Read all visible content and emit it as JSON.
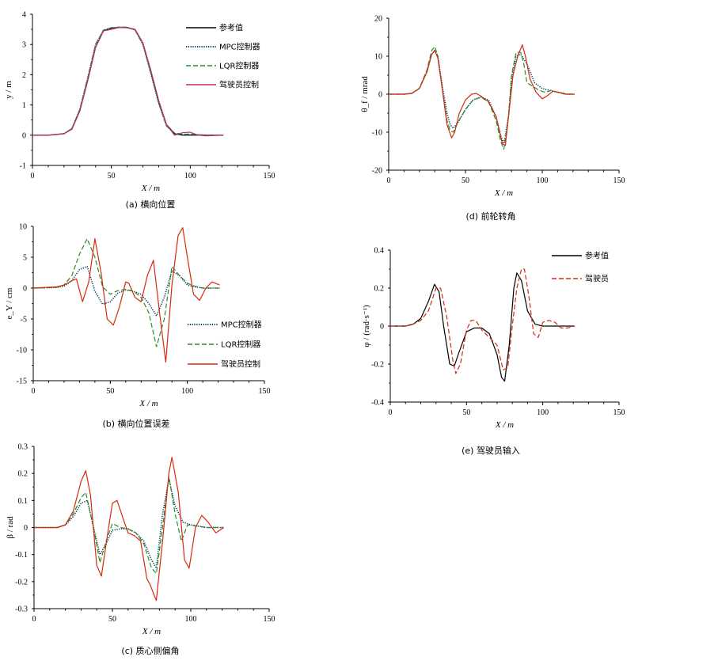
{
  "chart_data": [
    {
      "id": "a",
      "type": "line",
      "caption": "(a)   横向位置",
      "xlabel": "X / m",
      "ylabel": "y / m",
      "xlim": [
        0,
        150
      ],
      "ylim": [
        -1,
        4
      ],
      "xticks": [
        0,
        50,
        100,
        150
      ],
      "yticks": [
        -1,
        0,
        1,
        2,
        3,
        4
      ],
      "legend_position": "top-right",
      "series": [
        {
          "name": "参考值",
          "color": "#000000",
          "dash": "solid",
          "x": [
            0,
            10,
            20,
            25,
            30,
            35,
            40,
            45,
            50,
            55,
            60,
            65,
            70,
            75,
            80,
            85,
            90,
            95,
            100,
            110,
            121
          ],
          "y": [
            0,
            0,
            0.05,
            0.2,
            0.8,
            1.8,
            2.9,
            3.45,
            3.55,
            3.56,
            3.56,
            3.5,
            3.05,
            2.1,
            1.1,
            0.35,
            0.05,
            0,
            0,
            0,
            0
          ]
        },
        {
          "name": "MPC控制器",
          "color": "#003b5c",
          "dash": "dotted",
          "x": [
            0,
            10,
            20,
            25,
            30,
            35,
            40,
            45,
            50,
            55,
            60,
            65,
            70,
            75,
            80,
            85,
            90,
            95,
            100,
            110,
            121
          ],
          "y": [
            0,
            0,
            0.05,
            0.22,
            0.85,
            1.9,
            3.0,
            3.47,
            3.55,
            3.57,
            3.56,
            3.48,
            3.0,
            2.05,
            1.05,
            0.3,
            0.05,
            0.02,
            0.02,
            0,
            0
          ]
        },
        {
          "name": "LQR控制器",
          "color": "#2a8a2a",
          "dash": "dashed",
          "x": [
            0,
            10,
            20,
            25,
            30,
            35,
            40,
            45,
            50,
            55,
            60,
            65,
            70,
            75,
            80,
            85,
            90,
            95,
            100,
            110,
            121
          ],
          "y": [
            0,
            0,
            0.05,
            0.22,
            0.85,
            1.9,
            3.0,
            3.48,
            3.52,
            3.58,
            3.57,
            3.48,
            3.0,
            2.05,
            1.05,
            0.3,
            0.08,
            0.03,
            0.04,
            0,
            0
          ]
        },
        {
          "name": "驾驶员控制",
          "color": "#c8286e",
          "dash": "solid",
          "x": [
            0,
            10,
            20,
            25,
            30,
            35,
            40,
            45,
            50,
            55,
            60,
            65,
            70,
            75,
            80,
            85,
            90,
            95,
            100,
            105,
            110,
            121
          ],
          "y": [
            0,
            0,
            0.05,
            0.2,
            0.8,
            1.8,
            2.9,
            3.45,
            3.5,
            3.56,
            3.55,
            3.5,
            3.05,
            2.15,
            1.15,
            0.35,
            0,
            0.08,
            0.1,
            0,
            -0.02,
            0
          ]
        }
      ]
    },
    {
      "id": "b",
      "type": "line",
      "caption": "(b)  横向位置误差",
      "xlabel": "X / m",
      "ylabel": "e_Y / cm",
      "xlim": [
        0,
        150
      ],
      "ylim": [
        -15,
        10
      ],
      "xticks": [
        0,
        50,
        100,
        150
      ],
      "yticks": [
        -15,
        -10,
        -5,
        0,
        5,
        10
      ],
      "legend_position": "bottom-right",
      "series": [
        {
          "name": "MPC控制器",
          "color": "#003b5c",
          "dash": "dotted",
          "x": [
            0,
            15,
            20,
            25,
            30,
            35,
            40,
            45,
            50,
            55,
            60,
            65,
            70,
            75,
            80,
            85,
            90,
            95,
            100,
            105,
            110,
            115,
            121
          ],
          "y": [
            0,
            0.1,
            0.3,
            1.2,
            3.0,
            3.5,
            -0.5,
            -2.6,
            -2.2,
            -0.8,
            -0.3,
            -0.5,
            -1.0,
            -2.5,
            -4.5,
            -1.5,
            2.8,
            2.0,
            0.5,
            0.2,
            0,
            0,
            0
          ]
        },
        {
          "name": "LQR控制器",
          "color": "#2a8a2a",
          "dash": "dashed",
          "x": [
            0,
            15,
            20,
            25,
            30,
            35,
            40,
            45,
            50,
            55,
            60,
            65,
            70,
            75,
            80,
            85,
            90,
            95,
            100,
            105,
            110,
            115,
            121
          ],
          "y": [
            0,
            0.1,
            0.5,
            2.0,
            5.5,
            8.0,
            5.0,
            0.2,
            -1.0,
            -0.4,
            -0.2,
            -0.5,
            -1.5,
            -4.0,
            -9.5,
            -5.0,
            3.5,
            2.0,
            0.8,
            0.3,
            0,
            0,
            0
          ]
        },
        {
          "name": "驾驶员控制",
          "color": "#d42a10",
          "dash": "solid",
          "x": [
            0,
            15,
            20,
            25,
            28,
            32,
            36,
            40,
            44,
            48,
            52,
            56,
            60,
            62,
            66,
            70,
            74,
            78,
            82,
            86,
            90,
            94,
            97,
            100,
            104,
            108,
            112,
            116,
            121
          ],
          "y": [
            0,
            0.2,
            0.5,
            1.2,
            1.5,
            -2.2,
            1.0,
            8.0,
            2.5,
            -5.0,
            -6.0,
            -3.0,
            1.0,
            0.8,
            -1.5,
            -2.2,
            2.0,
            4.5,
            -4.0,
            -12.0,
            0.5,
            8.5,
            9.8,
            5.0,
            -1.0,
            -2.0,
            0,
            1.0,
            0.5
          ]
        }
      ]
    },
    {
      "id": "c",
      "type": "line",
      "caption": "(c)    质心侧偏角",
      "xlabel": "X / m",
      "ylabel": "β / rad",
      "xlim": [
        0,
        150
      ],
      "ylim": [
        -0.3,
        0.3
      ],
      "xticks": [
        0,
        50,
        100,
        150
      ],
      "yticks": [
        -0.3,
        -0.2,
        -0.1,
        0,
        0.1,
        0.2,
        0.3
      ],
      "series": [
        {
          "name": "MPC控制器",
          "color": "#003b5c",
          "dash": "dotted",
          "x": [
            0,
            15,
            20,
            25,
            30,
            34,
            38,
            42,
            46,
            50,
            55,
            60,
            65,
            70,
            75,
            78,
            82,
            86,
            90,
            95,
            100,
            110,
            121
          ],
          "y": [
            0,
            0,
            0.01,
            0.04,
            0.09,
            0.1,
            0.0,
            -0.1,
            -0.06,
            -0.01,
            -0.005,
            -0.005,
            -0.02,
            -0.05,
            -0.12,
            -0.15,
            0.05,
            0.18,
            0.08,
            0.02,
            0.01,
            0,
            0
          ]
        },
        {
          "name": "LQR控制器",
          "color": "#2a8a2a",
          "dash": "dashed",
          "x": [
            0,
            15,
            20,
            25,
            30,
            33,
            38,
            42,
            46,
            50,
            55,
            60,
            65,
            70,
            75,
            78,
            82,
            86,
            90,
            94,
            98,
            104,
            110,
            121
          ],
          "y": [
            0,
            0,
            0.01,
            0.05,
            0.11,
            0.13,
            0.0,
            -0.13,
            -0.05,
            0.015,
            0.0,
            -0.005,
            -0.02,
            -0.06,
            -0.15,
            -0.17,
            0.0,
            0.19,
            0.05,
            -0.05,
            0.01,
            0.005,
            0,
            0
          ]
        },
        {
          "name": "驾驶员控制",
          "color": "#d42a10",
          "dash": "solid",
          "x": [
            0,
            15,
            20,
            25,
            30,
            33,
            36,
            40,
            43,
            47,
            50,
            53,
            57,
            60,
            64,
            68,
            72,
            74,
            78,
            82,
            86,
            88,
            92,
            96,
            99,
            103,
            107,
            111,
            116,
            121
          ],
          "y": [
            0,
            0,
            0.01,
            0.06,
            0.17,
            0.21,
            0.12,
            -0.14,
            -0.18,
            -0.02,
            0.09,
            0.1,
            0.03,
            -0.02,
            -0.03,
            -0.05,
            -0.19,
            -0.21,
            -0.27,
            -0.05,
            0.2,
            0.26,
            0.13,
            -0.12,
            -0.15,
            0.0,
            0.045,
            0.02,
            -0.02,
            0
          ]
        }
      ]
    },
    {
      "id": "d",
      "type": "line",
      "caption": "(d)  前轮转角",
      "xlabel": "X / m",
      "ylabel": "θ_f / mrad",
      "xlim": [
        0,
        150
      ],
      "ylim": [
        -20,
        20
      ],
      "xticks": [
        0,
        50,
        100,
        150
      ],
      "yticks": [
        -20,
        -10,
        0,
        10,
        20
      ],
      "series": [
        {
          "name": "MPC控制器",
          "color": "#003b5c",
          "dash": "dotted",
          "x": [
            0,
            10,
            15,
            20,
            25,
            28,
            30,
            32,
            35,
            38,
            40,
            42,
            45,
            50,
            55,
            60,
            65,
            70,
            73,
            75,
            78,
            80,
            83,
            86,
            90,
            95,
            100,
            105,
            110,
            115,
            121
          ],
          "y": [
            0,
            0,
            0.2,
            1.5,
            6.0,
            10.5,
            11.5,
            10.0,
            2.0,
            -5.0,
            -8.0,
            -9.0,
            -7.5,
            -4.0,
            -1.5,
            -0.8,
            -1.5,
            -6.0,
            -11.0,
            -13.0,
            -6.0,
            4.0,
            10.0,
            10.5,
            8.0,
            3.0,
            1.5,
            1.0,
            0.5,
            0,
            0
          ]
        },
        {
          "name": "LQR控制器",
          "color": "#2a8a2a",
          "dash": "dashed",
          "x": [
            0,
            10,
            15,
            20,
            25,
            28,
            30,
            32,
            35,
            38,
            40,
            42,
            45,
            50,
            55,
            60,
            65,
            70,
            73,
            75,
            78,
            80,
            83,
            86,
            88,
            90,
            94,
            98,
            102,
            106,
            110,
            115,
            121
          ],
          "y": [
            0,
            0,
            0.2,
            1.5,
            6.5,
            11.5,
            12.5,
            10.0,
            1.0,
            -7.0,
            -9.5,
            -10.0,
            -7.5,
            -4.0,
            -1.5,
            -0.8,
            -2.0,
            -7.0,
            -12.5,
            -14.5,
            -6.0,
            5.0,
            11.0,
            11.0,
            8.0,
            3.0,
            2.0,
            1.0,
            0.5,
            1.0,
            0.5,
            0,
            0
          ]
        },
        {
          "name": "驾驶员控制",
          "color": "#d42a10",
          "dash": "solid",
          "x": [
            0,
            10,
            15,
            20,
            25,
            28,
            30,
            32,
            35,
            38,
            41,
            43,
            46,
            50,
            54,
            57,
            60,
            65,
            70,
            74,
            76,
            78,
            81,
            84,
            87,
            89,
            92,
            96,
            100,
            103,
            107,
            111,
            116,
            121
          ],
          "y": [
            0,
            0,
            0.2,
            1.5,
            6.0,
            10.5,
            11.5,
            9.5,
            1.0,
            -8.0,
            -11.5,
            -10.0,
            -5.0,
            -1.5,
            0,
            0.2,
            -0.5,
            -2.0,
            -6.0,
            -13.0,
            -13.5,
            -6.0,
            5.0,
            10.0,
            13.0,
            10.0,
            4.0,
            0.5,
            -1.2,
            -0.5,
            0.8,
            0.5,
            0,
            0
          ]
        }
      ]
    },
    {
      "id": "e",
      "type": "line",
      "caption": "(e)  驾驶员输入",
      "xlabel": "X / m",
      "ylabel": "φ / (rad·s⁻¹)",
      "xlim": [
        0,
        150
      ],
      "ylim": [
        -0.4,
        0.4
      ],
      "xticks": [
        0,
        50,
        100,
        150
      ],
      "yticks": [
        -0.4,
        -0.2,
        0,
        0.2,
        0.4
      ],
      "legend_position": "top-right",
      "series": [
        {
          "name": "参考值",
          "color": "#000000",
          "dash": "solid",
          "x": [
            0,
            10,
            15,
            20,
            25,
            29,
            32,
            35,
            39,
            42,
            45,
            50,
            55,
            60,
            65,
            70,
            73,
            75,
            78,
            81,
            83,
            86,
            90,
            95,
            100,
            110,
            121
          ],
          "y": [
            0,
            0,
            0.01,
            0.04,
            0.13,
            0.22,
            0.18,
            0.0,
            -0.2,
            -0.21,
            -0.14,
            -0.03,
            -0.01,
            -0.01,
            -0.04,
            -0.15,
            -0.27,
            -0.29,
            -0.1,
            0.2,
            0.28,
            0.24,
            0.08,
            0.01,
            0,
            0,
            0
          ]
        },
        {
          "name": "驾驶员",
          "color": "#d42a10",
          "dash": "dashed",
          "x": [
            0,
            10,
            15,
            20,
            25,
            30,
            33,
            37,
            41,
            43,
            46,
            50,
            53,
            56,
            60,
            65,
            70,
            74,
            77,
            80,
            83,
            86,
            88,
            91,
            94,
            97,
            100,
            104,
            108,
            112,
            116,
            121
          ],
          "y": [
            0,
            0,
            0.01,
            0.03,
            0.08,
            0.2,
            0.2,
            0.05,
            -0.18,
            -0.25,
            -0.2,
            -0.02,
            0.03,
            0.03,
            -0.02,
            -0.06,
            -0.1,
            -0.23,
            -0.22,
            0.0,
            0.2,
            0.3,
            0.3,
            0.15,
            -0.04,
            -0.06,
            0.02,
            0.03,
            0.02,
            -0.01,
            -0.01,
            0
          ]
        }
      ]
    }
  ]
}
